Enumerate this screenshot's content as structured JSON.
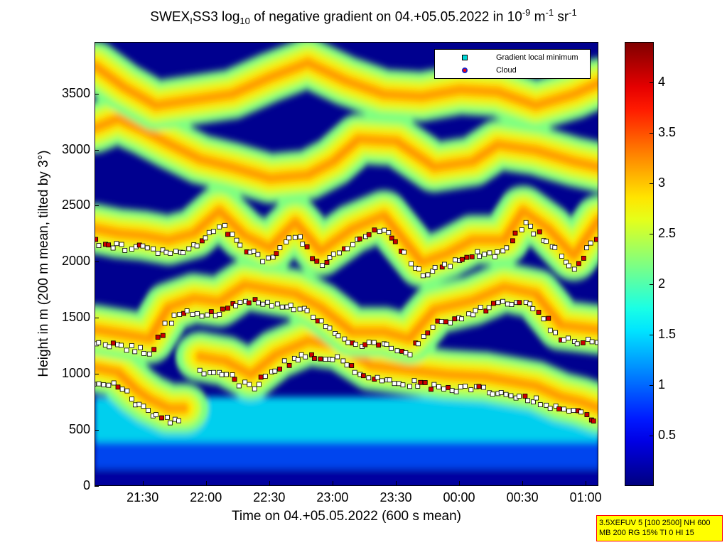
{
  "title": {
    "prefix": "SWEX",
    "sub1": "I",
    "part2": "SS3 log",
    "sub2": "10",
    "part3": " of negative gradient on 04.+05.05.2022 in 10",
    "sup1": "-9",
    "part4": " m",
    "sup2": "-1",
    "part5": " sr",
    "sup3": "-1"
  },
  "xlabel": "Time on 04.+05.05.2022 (600 s mean)",
  "ylabel": "Height in m (200 m mean, tilted by 3°)",
  "legend": [
    {
      "label": "Gradient local minimum",
      "color": "#00d8d8"
    },
    {
      "label": "Cloud",
      "color": "#ff0000"
    }
  ],
  "infobox": {
    "line1": "3.5XEFUV 5 [100 2500] NH 600",
    "line2": "MB 200 RG 15% TI 0 HI 15"
  },
  "chart_data": {
    "type": "heatmap",
    "x_ticks": [
      "21:30",
      "22:00",
      "22:30",
      "23:00",
      "23:30",
      "00:00",
      "00:30",
      "01:00"
    ],
    "x_tick_hours": [
      21.5,
      22.0,
      22.5,
      23.0,
      23.5,
      24.0,
      24.5,
      25.0
    ],
    "xlim": [
      21.12,
      25.1
    ],
    "y_ticks": [
      0,
      500,
      1000,
      1500,
      2000,
      2500,
      3000,
      3500
    ],
    "ylim": [
      0,
      3960
    ],
    "colorbar_ticks": [
      0.5,
      1,
      1.5,
      2,
      2.5,
      3,
      3.5,
      4
    ],
    "clim": [
      0,
      4.4
    ],
    "colormap": "jet",
    "layers": [
      {
        "name": "layer-a",
        "points": [
          [
            21.12,
            1060
          ],
          [
            21.3,
            1020
          ],
          [
            21.45,
            860
          ],
          [
            21.55,
            780
          ],
          [
            21.7,
            700
          ],
          [
            21.82,
            700
          ]
        ]
      },
      {
        "name": "layer-b",
        "points": [
          [
            21.95,
            1160
          ],
          [
            22.15,
            1120
          ],
          [
            22.35,
            1000
          ],
          [
            22.55,
            1180
          ],
          [
            22.8,
            1300
          ],
          [
            23.05,
            1260
          ],
          [
            23.3,
            1080
          ],
          [
            23.6,
            1040
          ],
          [
            23.9,
            1000
          ],
          [
            24.2,
            980
          ],
          [
            24.4,
            940
          ],
          [
            24.6,
            900
          ],
          [
            24.8,
            800
          ],
          [
            24.95,
            760
          ],
          [
            25.1,
            700
          ]
        ]
      },
      {
        "name": "layer-c",
        "points": [
          [
            21.12,
            1400
          ],
          [
            21.35,
            1360
          ],
          [
            21.55,
            1320
          ],
          [
            21.7,
            1600
          ],
          [
            21.9,
            1680
          ],
          [
            22.1,
            1650
          ],
          [
            22.3,
            1800
          ],
          [
            22.5,
            1760
          ],
          [
            22.7,
            1720
          ],
          [
            22.9,
            1600
          ],
          [
            23.15,
            1380
          ],
          [
            23.4,
            1380
          ],
          [
            23.6,
            1320
          ],
          [
            23.8,
            1580
          ],
          [
            24.1,
            1660
          ],
          [
            24.35,
            1780
          ],
          [
            24.6,
            1720
          ],
          [
            24.8,
            1440
          ],
          [
            25.1,
            1400
          ]
        ]
      },
      {
        "name": "layer-d",
        "points": [
          [
            21.12,
            2300
          ],
          [
            21.3,
            2260
          ],
          [
            21.5,
            2240
          ],
          [
            21.7,
            2200
          ],
          [
            21.9,
            2260
          ],
          [
            22.1,
            2460
          ],
          [
            22.3,
            2240
          ],
          [
            22.5,
            2130
          ],
          [
            22.7,
            2360
          ],
          [
            22.9,
            2100
          ],
          [
            23.15,
            2300
          ],
          [
            23.4,
            2420
          ],
          [
            23.7,
            2000
          ],
          [
            23.9,
            2080
          ],
          [
            24.1,
            2200
          ],
          [
            24.35,
            2200
          ],
          [
            24.5,
            2460
          ],
          [
            24.7,
            2300
          ],
          [
            24.9,
            2060
          ],
          [
            25.1,
            2380
          ]
        ]
      },
      {
        "name": "layer-e",
        "points": [
          [
            21.12,
            3200
          ],
          [
            21.3,
            3280
          ],
          [
            21.5,
            3180
          ],
          [
            21.7,
            3060
          ],
          [
            21.95,
            2920
          ],
          [
            22.2,
            2850
          ],
          [
            22.5,
            2750
          ],
          [
            22.8,
            2780
          ],
          [
            23.0,
            2900
          ],
          [
            23.2,
            3100
          ],
          [
            23.5,
            3080
          ],
          [
            23.8,
            2850
          ],
          [
            24.1,
            2900
          ],
          [
            24.3,
            3050
          ],
          [
            24.6,
            3000
          ],
          [
            24.9,
            2900
          ],
          [
            25.1,
            2850
          ]
        ]
      },
      {
        "name": "layer-f",
        "points": [
          [
            21.12,
            3750
          ],
          [
            21.35,
            3560
          ],
          [
            21.6,
            3400
          ],
          [
            21.9,
            3450
          ],
          [
            22.2,
            3500
          ],
          [
            22.5,
            3650
          ],
          [
            22.8,
            3780
          ],
          [
            23.1,
            3620
          ],
          [
            23.4,
            3500
          ],
          [
            23.7,
            3480
          ],
          [
            24.0,
            3540
          ],
          [
            24.3,
            3520
          ],
          [
            24.6,
            3400
          ],
          [
            24.9,
            3500
          ],
          [
            25.1,
            3600
          ]
        ]
      }
    ],
    "bottom_band": [
      {
        "y_range": [
          0,
          160
        ],
        "value": 0.15
      },
      {
        "y_range": [
          160,
          400
        ],
        "value": 0.9
      },
      {
        "y_range": [
          400,
          800
        ],
        "value": 1.6
      }
    ]
  }
}
